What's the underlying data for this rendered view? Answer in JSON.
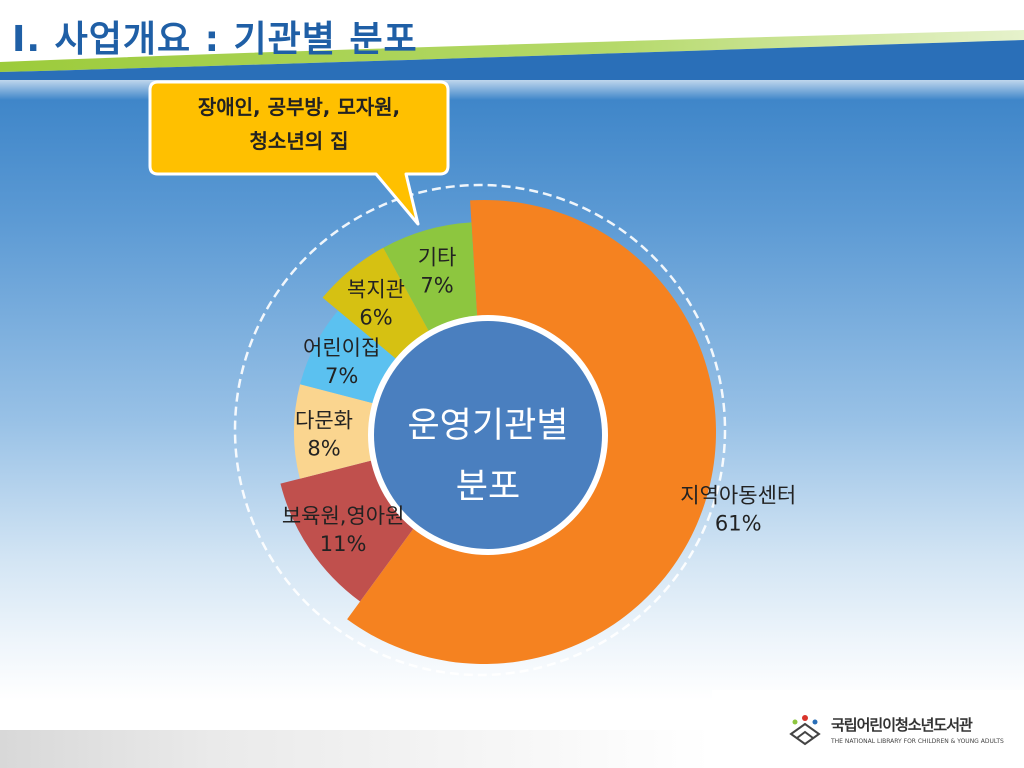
{
  "title": "I. 사업개요 : 기관별 분포",
  "callout": {
    "line1": "장애인, 공부방, 모자원,",
    "line2": "청소년의 집"
  },
  "logo": {
    "name": "국립어린이청소년도서관",
    "english": "THE NATIONAL LIBRARY FOR CHILDREN & YOUNG ADULTS"
  },
  "colors": {
    "title": "#1f5fa6",
    "callout": "#ffc000",
    "center": "#4a7fbf"
  },
  "chart_data": {
    "type": "pie",
    "center_label_line1": "운영기관별",
    "center_label_line2": "분포",
    "slices": [
      {
        "name": "지역아동센터",
        "value": 61,
        "label": "61%",
        "color": "#f58220"
      },
      {
        "name": "보육원,영아원",
        "value": 11,
        "label": "11%",
        "color": "#c0504d"
      },
      {
        "name": "다문화",
        "value": 8,
        "label": "8%",
        "color": "#fad58f"
      },
      {
        "name": "어린이집",
        "value": 7,
        "label": "7%",
        "color": "#5bc1f0"
      },
      {
        "name": "복지관",
        "value": 6,
        "label": "6%",
        "color": "#d6c112"
      },
      {
        "name": "기타",
        "value": 7,
        "label": "7%",
        "color": "#8dc63f"
      }
    ]
  }
}
